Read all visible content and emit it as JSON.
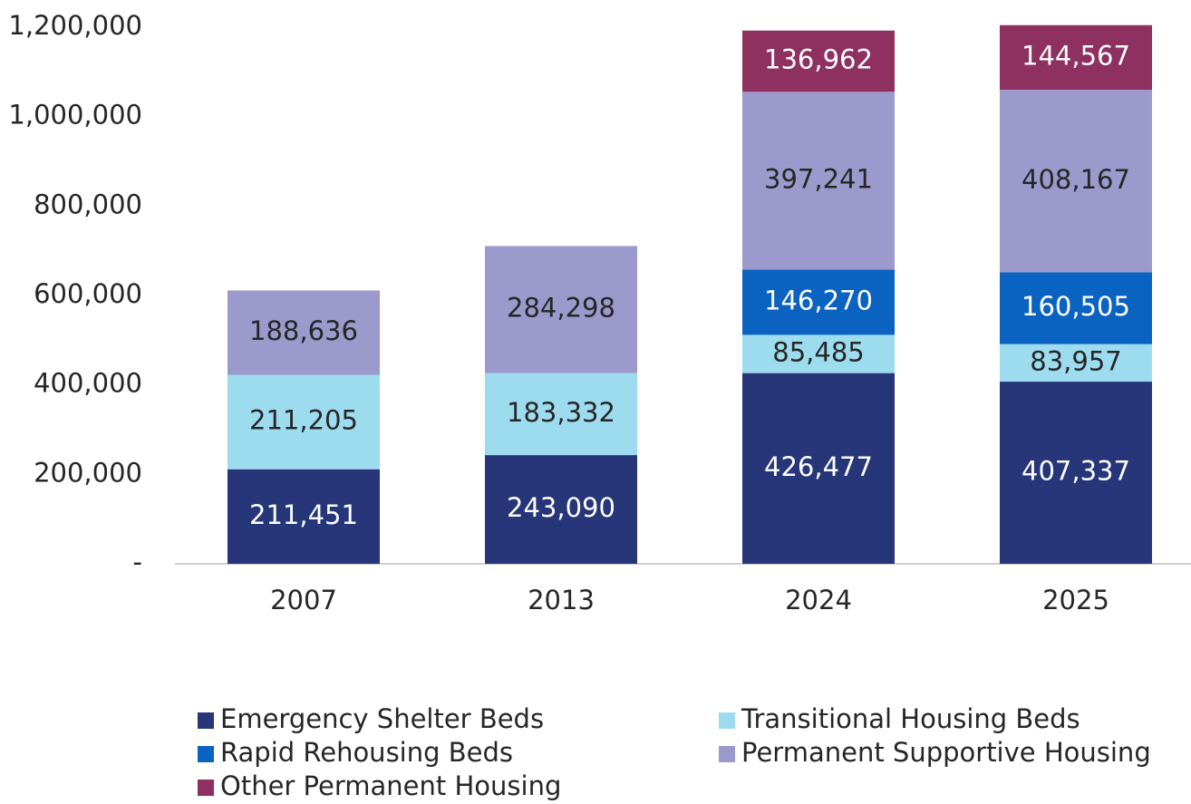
{
  "chart_data": {
    "type": "stacked_bar",
    "categories": [
      "2007",
      "2013",
      "2024",
      "2025"
    ],
    "series": [
      {
        "name": "Emergency Shelter Beds",
        "color": "#263679",
        "values": [
          211451,
          243090,
          426477,
          407337
        ],
        "value_labels": [
          "211,451",
          "243,090",
          "426,477",
          "407,337"
        ]
      },
      {
        "name": "Transitional Housing Beds",
        "color": "#9ddcef",
        "values": [
          211205,
          183332,
          85485,
          83957
        ],
        "value_labels": [
          "211,205",
          "183,332",
          "85,485",
          "83,957"
        ]
      },
      {
        "name": "Rapid Rehousing Beds",
        "color": "#0b63c1",
        "values": [
          null,
          null,
          146270,
          160505
        ],
        "value_labels": [
          null,
          null,
          "146,270",
          "160,505"
        ]
      },
      {
        "name": "Permanent Supportive Housing",
        "color": "#9c9acd",
        "values": [
          188636,
          284298,
          397241,
          408167
        ],
        "value_labels": [
          "188,636",
          "284,298",
          "397,241",
          "408,167"
        ]
      },
      {
        "name": "Other Permanent Housing",
        "color": "#8e3060",
        "values": [
          null,
          null,
          136962,
          144567
        ],
        "value_labels": [
          null,
          null,
          "136,962",
          "144,567"
        ]
      }
    ],
    "ylim": [
      0,
      1200000
    ],
    "yticks": [
      {
        "value": 0,
        "label": "-"
      },
      {
        "value": 200000,
        "label": "200,000"
      },
      {
        "value": 400000,
        "label": "400,000"
      },
      {
        "value": 600000,
        "label": "600,000"
      },
      {
        "value": 800000,
        "label": "800,000"
      },
      {
        "value": 1000000,
        "label": "1,000,000"
      },
      {
        "value": 1200000,
        "label": "1,200,000"
      }
    ],
    "grid": false
  }
}
